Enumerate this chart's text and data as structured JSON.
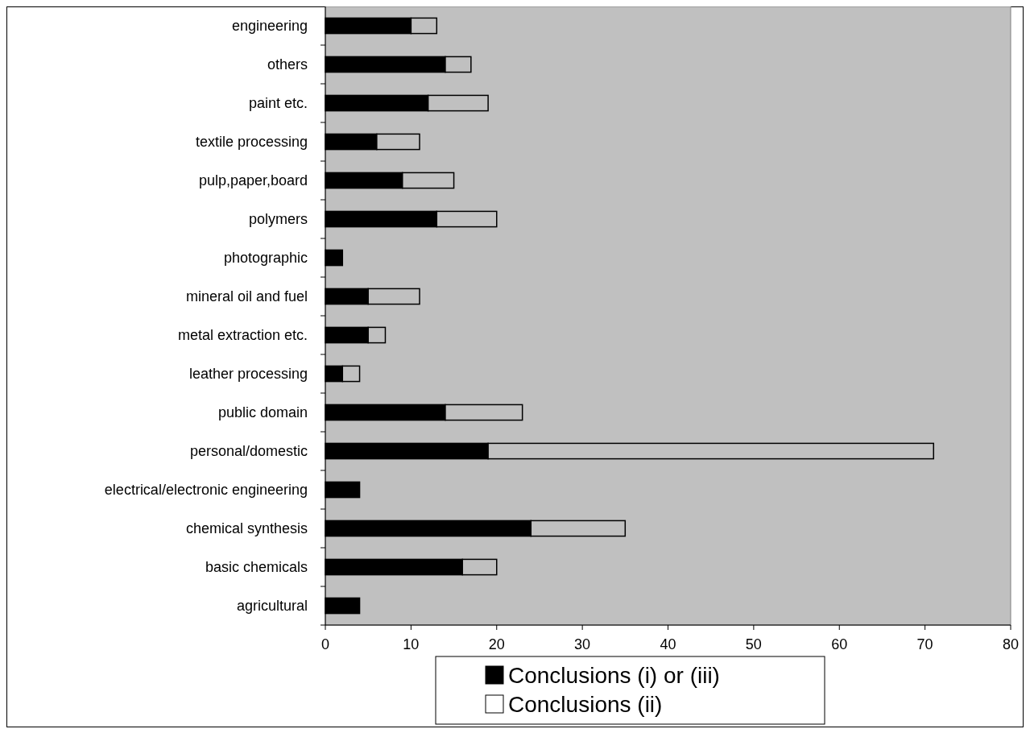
{
  "chart_data": {
    "type": "bar",
    "orientation": "horizontal",
    "stacked": true,
    "categories": [
      "engineering",
      "others",
      "paint etc.",
      "textile processing",
      "pulp,paper,board",
      "polymers",
      "photographic",
      "mineral oil and fuel",
      "metal extraction etc.",
      "leather processing",
      "public domain",
      "personal/domestic",
      "electrical/electronic engineering",
      "chemical synthesis",
      "basic chemicals",
      "agricultural"
    ],
    "series": [
      {
        "name": "Conclusions (i) or (iii)",
        "color": "#000000",
        "values": [
          10,
          14,
          12,
          6,
          9,
          13,
          2,
          5,
          5,
          2,
          14,
          19,
          4,
          24,
          16,
          4
        ]
      },
      {
        "name": "Conclusions (ii)",
        "color": "#c0c0c0",
        "values": [
          3,
          3,
          7,
          5,
          6,
          7,
          0,
          6,
          2,
          2,
          9,
          52,
          0,
          11,
          4,
          0
        ]
      }
    ],
    "xlim": [
      0,
      80
    ],
    "xticks": [
      0,
      10,
      20,
      30,
      40,
      50,
      60,
      70,
      80
    ],
    "grid": false,
    "legend": "bottom"
  }
}
